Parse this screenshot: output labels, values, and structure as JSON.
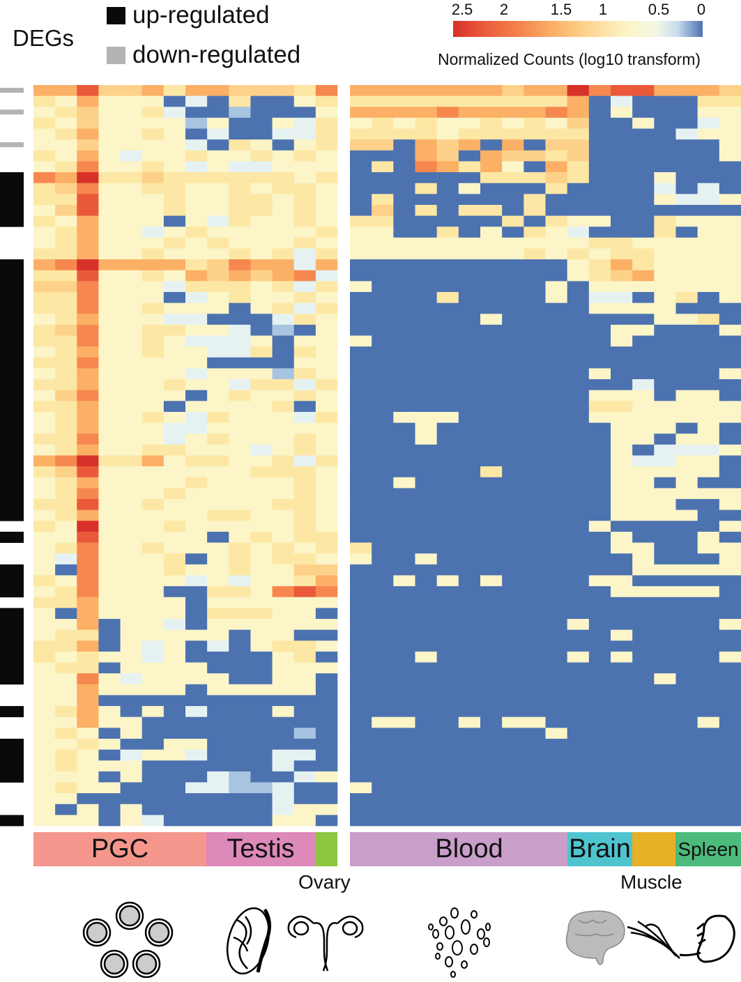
{
  "legend": {
    "title": "DEGs",
    "up_label": "up-regulated",
    "down_label": "down-regulated",
    "up_color": "#0a0a0a",
    "down_color": "#b3b3b3"
  },
  "colorbar": {
    "title": "Normalized Counts (log10 transform)",
    "ticks": [
      "2.5",
      "2",
      "1.5",
      "1",
      "0.5",
      "0"
    ],
    "colors": [
      "#4c72b0",
      "#a8c4e0",
      "#e6f2f2",
      "#fcf5c8",
      "#fde7a4",
      "#fdd18a",
      "#fbb066",
      "#f6884f",
      "#ea5a3a",
      "#d8302a"
    ]
  },
  "groups": {
    "pgc": {
      "label": "PGC",
      "color": "#f4968b"
    },
    "testis": {
      "label": "Testis",
      "color": "#dd89ba"
    },
    "ovary": {
      "label": "Ovary",
      "color": "#8dc63f"
    },
    "blood": {
      "label": "Blood",
      "color": "#c99ec9"
    },
    "brain": {
      "label": "Brain",
      "color": "#4fc4cf"
    },
    "muscle": {
      "label": "Muscle",
      "color": "#e8b027"
    },
    "spleen": {
      "label": "Spleen",
      "color": "#4cbb7b"
    }
  },
  "chart_data": {
    "type": "heatmap",
    "title": "",
    "value_label": "Normalized Counts (log10 transform)",
    "value_range": [
      0,
      2.5
    ],
    "level_values": [
      0,
      0.3,
      0.6,
      0.9,
      1.1,
      1.3,
      1.6,
      1.9,
      2.2,
      2.5
    ],
    "columns_left": {
      "PGC": 8,
      "Testis": 5,
      "Ovary": 1
    },
    "columns_right": {
      "Blood": 10,
      "Brain": 3,
      "Muscle": 2,
      "Spleen": 3
    },
    "deg_status": "d-d--d--uuuuu---uuuuuuuuuuuuuuuuuuuuuuuu-u--uuu-uuuuuuu--u--uuuu---u",
    "rows": [
      "66855646655547 666666656697886665",
      "43633302040034 444444444460200044",
      "34533420010003 666676666760300033",
      "43533331300324 343433434350030023",
      "34633430200224 444434444440000233",
      "33533332043034 550656060550000003",
      "43632334334343 000650655450000003",
      "34733432322333 040764630640000000",
      "76944544444434 000000444540003000",
      "45733443343443 000403000400002020",
      "44833343344343 040000004000003223",
      "35833343344343 050404404000000000",
      "43633303243343 440000040433004333",
      "34633234333334 330040304320004033",
      "34633343433343 333333333334433333",
      "44633433343424 333333334343443333",
      "67966664576626 000000000034643333",
      "44833436565672 000000000034563333",
      "55733324443424 300000000303333333",
      "44733302343343 000040000302203403",
      "44733433303424 000000000003333000",
      "34633322000243 000000300000003340",
      "45733443320103 000000000000330003",
      "44733432223033 300000000000300000",
      "34633433224043 000000000000000000",
      "44733333000033 000000000000000000",
      "34633332333143 000000000003000003",
      "44633343324424 000000000000020000",
      "35733330343343 000000000003330330",
      "44633303333403 000000000004433333",
      "34633432433324 003330000003333333",
      "34633322333333 000300000000333030",
      "44733323433343 000300000000330330",
      "34633443332343 000000000000302223",
      "67944634433424 000000000000322330",
      "45833333334443 000000400000333330",
      "34633334333343 003000000000330300",
      "34733343333343 000000000000333333",
      "44833433333443 000000000000333003",
      "34633333443343 000000000000333300",
      "43933343333343 000000000003000003",
      "33833333034344 000000000000300030",
      "34733433343434 400000000000330033",
      "32733340343443 300300000000030003",
      "30733343343355 000000000000033333",
      "43733332323346 003030300003300000",
      "34733300443787 000000000000333330",
      "44633330333333 000000000000000000",
      "30633330444330 000000000000000000",
      "33603320333333 000000000030000003",
      "34403333303300 000000000000300000",
      "44603230203443 000000000000000000",
      "43433230000340 000300000030300003",
      "34403333000333 000000000000000000",
      "33732333300330 000000000000003000",
      "33633330333330 000000000000000000",
      "33600000000000 000000000000000000",
      "34630302000300 000000000000000000",
      "33633000000000 033003033000000030",
      "34303000000010 000000000300000000",
      "33430033000000 000000000000000000",
      "34302332000220 000000000000000000",
      "34333000000200 000000000000000000",
      "33303000210023 000000000000000000",
      "34330002211200 300000000000000000",
      "33000000000200 000000000000000000",
      "30303000000233 000000000000000000",
      "33303200000330 000000000000000000"
    ]
  }
}
